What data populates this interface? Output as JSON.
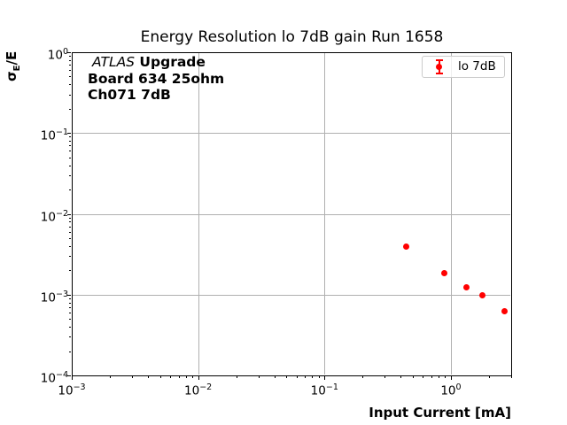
{
  "figure": {
    "background": "#ffffff",
    "accent_color": "#ff0000",
    "grid_color": "#b0b0b0",
    "legend_border_color": "#cccccc"
  },
  "chart_data": {
    "type": "scatter",
    "title": "Energy Resolution lo 7dB gain Run 1658",
    "xlabel": "Input Current [mA]",
    "ylabel": "σ_E/E",
    "ylabel_parts": {
      "sigma": "σ",
      "subscript": "E",
      "suffix": "/E"
    },
    "xscale": "log",
    "yscale": "log",
    "xlim": [
      0.001,
      3
    ],
    "ylim": [
      0.0001,
      1.0
    ],
    "x_major_tick_exponents": [
      -3,
      -2,
      -1,
      0
    ],
    "y_major_tick_exponents": [
      0,
      -1,
      -2,
      -3,
      -4
    ],
    "grid": "major",
    "legend_position": "upper right",
    "annotation": {
      "line1_italic": "ATLAS",
      "line1_bold": " Upgrade",
      "line2": "Board 634 25ohm",
      "line3": "Ch071 7dB"
    },
    "series": [
      {
        "name": "lo 7dB",
        "color": "#ff0000",
        "marker": "circle-with-errorbar",
        "x": [
          0.445,
          0.89,
          1.33,
          1.78,
          2.66
        ],
        "y": [
          0.0039,
          0.00185,
          0.00122,
          0.00097,
          0.00062
        ]
      }
    ]
  }
}
